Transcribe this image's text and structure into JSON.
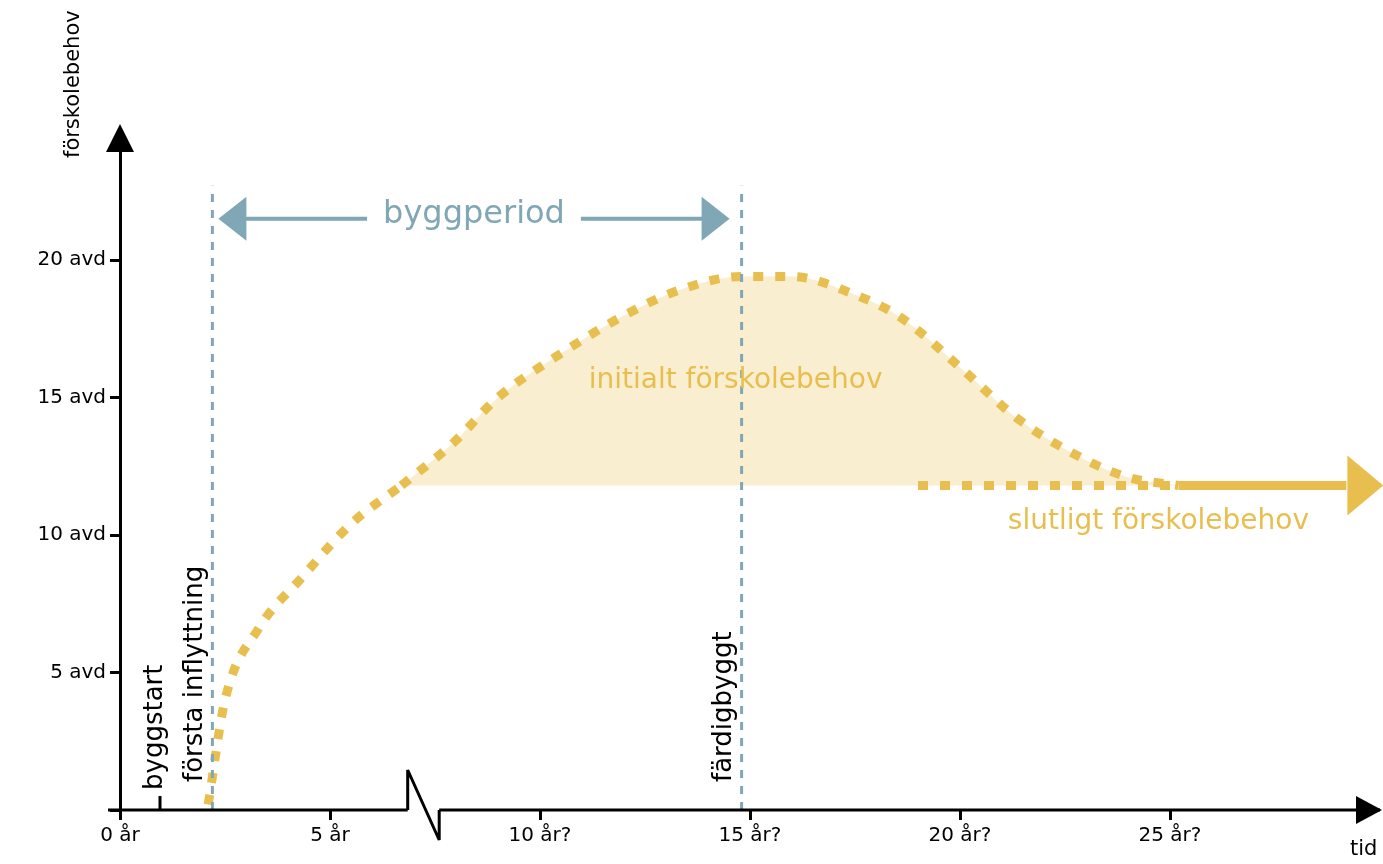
{
  "chart_data": {
    "type": "line",
    "xlabel": "tid",
    "ylabel": "förskolebehov",
    "xlim": [
      0,
      30
    ],
    "ylim": [
      0,
      24
    ],
    "xticks": [
      {
        "value": 0,
        "label": "0 år"
      },
      {
        "value": 5,
        "label": "5 år"
      },
      {
        "value": 10,
        "label": "10 år?"
      },
      {
        "value": 15,
        "label": "15 år?"
      },
      {
        "value": 20,
        "label": "20 år?"
      },
      {
        "value": 25,
        "label": "25 år?"
      }
    ],
    "yticks": [
      {
        "value": 0,
        "label": null
      },
      {
        "value": 5,
        "label": "5 avd"
      },
      {
        "value": 10,
        "label": "10 avd"
      },
      {
        "value": 15,
        "label": "15 avd"
      },
      {
        "value": 20,
        "label": "20 avd"
      }
    ],
    "series": [
      {
        "type": "line",
        "color": "#e8bf4f",
        "line_style": "dotted",
        "x": [
          2.1,
          2.5,
          3.3,
          4.3,
          5.5,
          6.7
        ],
        "values": [
          0.2,
          4.0,
          6.6,
          8.4,
          10.4,
          11.8
        ]
      },
      {
        "name": "initialt förskolebehov",
        "type": "area",
        "color": "#e8bf4f",
        "line_style": "dotted",
        "x": [
          6.7,
          7.9,
          9.0,
          10.5,
          11.9,
          13.3,
          14.8,
          16.0,
          17.4,
          18.6,
          20.0,
          21.4,
          22.9,
          24.0,
          25.2
        ],
        "values": [
          11.8,
          13.3,
          15.0,
          16.6,
          17.9,
          18.9,
          19.4,
          19.4,
          18.8,
          17.9,
          16.1,
          14.2,
          12.8,
          12.1,
          11.8
        ]
      },
      {
        "name": "slutligt förskolebehov",
        "type": "line",
        "color": "#e8bf4f",
        "line_style": "dotted",
        "x": [
          19.0,
          25.2
        ],
        "values": [
          11.8,
          11.8
        ]
      },
      {
        "type": "line",
        "color": "#e8bf4f",
        "line_style": "solid",
        "x": [
          25.2,
          29.2
        ],
        "values": [
          11.8,
          11.8
        ]
      }
    ],
    "ref_lines": [
      {
        "axis": "x",
        "value": 2.2,
        "label": "första inflyttning",
        "color": "#7fa7b5",
        "line_style": "dashed"
      },
      {
        "axis": "x",
        "value": 14.8,
        "label": "färdigbyggt",
        "color": "#7fa7b5",
        "line_style": "dashed"
      }
    ],
    "annotations": [
      "byggstart",
      "byggperiod"
    ],
    "legend": false
  }
}
